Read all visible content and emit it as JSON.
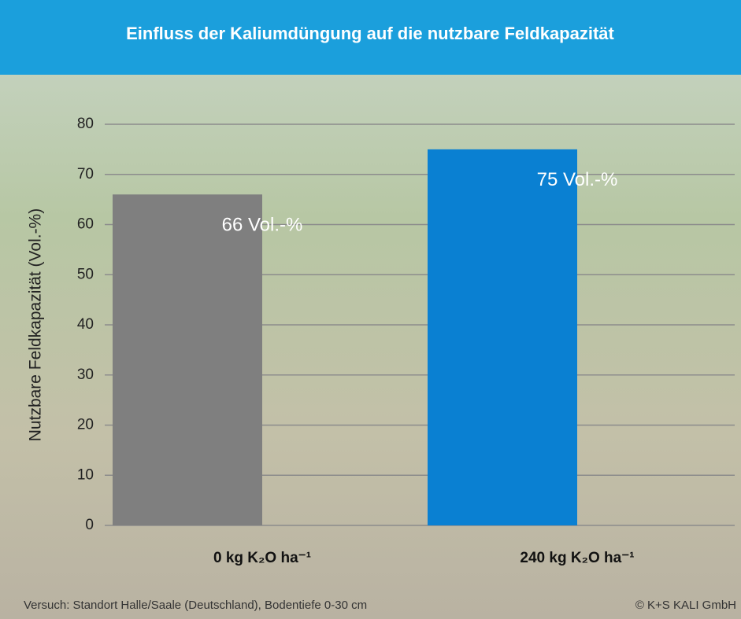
{
  "chart_data": {
    "type": "bar",
    "title": "Einfluss der Kaliumdüngung auf die nutzbare Feldkapazität",
    "y_label": "Nutzbare Feldkapazität (Vol.-%)",
    "categories": [
      "0 kg K₂O ha⁻¹",
      "240 kg K₂O ha⁻¹"
    ],
    "values": [
      66,
      75
    ],
    "value_labels": [
      "66 Vol.-%",
      "75 Vol.-%"
    ],
    "colors": [
      "#7f7f7f",
      "#0a80d2"
    ],
    "ylim": [
      0,
      80
    ],
    "yticks": [
      0,
      10,
      20,
      30,
      40,
      50,
      60,
      70,
      80
    ],
    "grid": true,
    "footnote": "Versuch: Standort Halle/Saale (Deutschland), Bodentiefe 0-30 cm",
    "source": "© K+S KALI GmbH"
  }
}
